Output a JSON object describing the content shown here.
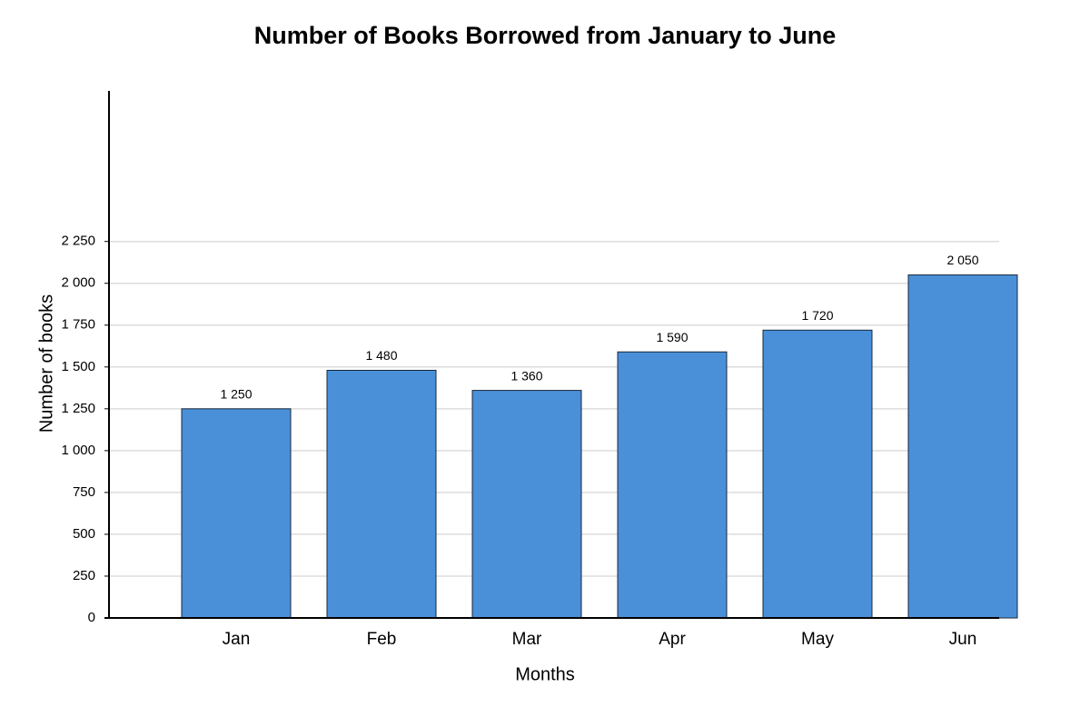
{
  "chart_data": {
    "type": "bar",
    "title": "Number of Books Borrowed from January to June",
    "x_label": "Months",
    "y_label": "Number of books",
    "categories": [
      "Jan",
      "Feb",
      "Mar",
      "Apr",
      "May",
      "Jun"
    ],
    "values": [
      1250,
      1480,
      1360,
      1590,
      1720,
      2050
    ],
    "value_labels": [
      "1 250",
      "1 480",
      "1 360",
      "1 590",
      "1 720",
      "2 050"
    ],
    "color": "#4a90d9",
    "ylim": [
      0,
      3150
    ],
    "yticks": [
      0,
      250,
      500,
      750,
      {
        "value": 1000,
        "label": "1 000"
      },
      {
        "value": 1250,
        "label": "1 250"
      },
      {
        "value": 1500,
        "label": "1 500"
      },
      {
        "value": 1750,
        "label": "1 750"
      },
      {
        "value": 2000,
        "label": "2 000"
      },
      {
        "value": 2250,
        "label": "2 250"
      }
    ],
    "grid": true
  }
}
